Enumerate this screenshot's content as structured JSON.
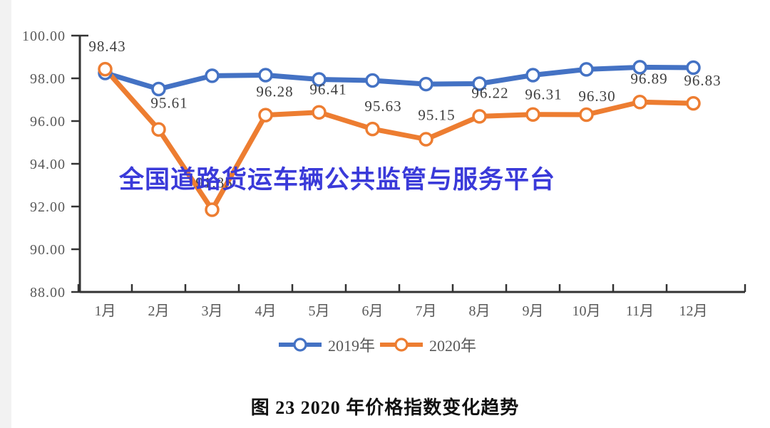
{
  "watermark": {
    "text": "全国道路货运车辆公共监管与服务平台",
    "color": "#3A3AD9"
  },
  "caption": {
    "text": "图 23 2020 年价格指数变化趋势"
  },
  "legend": {
    "items": [
      {
        "label": "2019年",
        "color": "#4472C4"
      },
      {
        "label": "2020年",
        "color": "#ED7D31"
      }
    ]
  },
  "chart_data": {
    "type": "line",
    "title": "图 23 2020 年价格指数变化趋势",
    "categories": [
      "1月",
      "2月",
      "3月",
      "4月",
      "5月",
      "6月",
      "7月",
      "8月",
      "9月",
      "10月",
      "11月",
      "12月"
    ],
    "series": [
      {
        "name": "2019年",
        "color": "#4472C4",
        "values": [
          98.25,
          97.5,
          98.12,
          98.15,
          97.95,
          97.9,
          97.73,
          97.75,
          98.15,
          98.42,
          98.52,
          98.5
        ],
        "data_labels": null
      },
      {
        "name": "2020年",
        "color": "#ED7D31",
        "values": [
          98.43,
          95.61,
          91.85,
          96.28,
          96.41,
          95.63,
          95.15,
          96.22,
          96.31,
          96.3,
          96.89,
          96.83
        ],
        "data_labels": [
          "98.43",
          "95.61",
          "91.85",
          "96.28",
          "96.41",
          "95.63",
          "95.15",
          "96.22",
          "96.31",
          "96.30",
          "96.89",
          "96.83"
        ]
      }
    ],
    "ylim": [
      88,
      100
    ],
    "yticks": [
      "100.00",
      "98.00",
      "96.00",
      "94.00",
      "92.00",
      "90.00",
      "88.00"
    ],
    "xlabel": "",
    "ylabel": "",
    "grid": false,
    "legend_position": "bottom",
    "axis_color": "#333333",
    "tick_label_color": "#595959",
    "data_label_color": "#3F3F3F"
  }
}
